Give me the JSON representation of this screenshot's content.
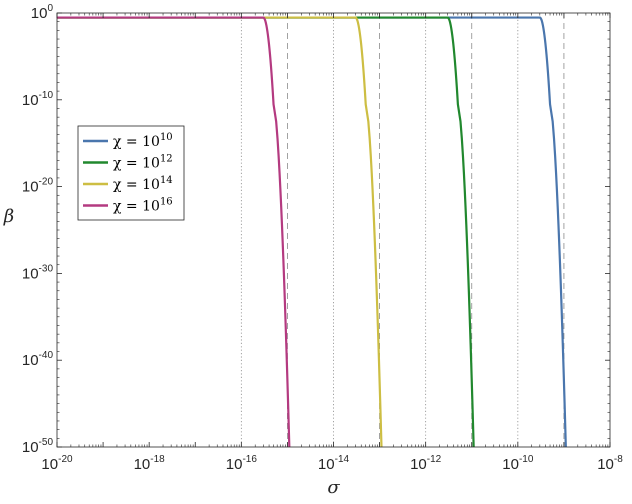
{
  "chart_data": {
    "type": "line",
    "x_scale": "log",
    "y_scale": "log",
    "xlim": [
      1e-20,
      1e-08
    ],
    "ylim": [
      1e-50,
      1
    ],
    "xlabel": "σ",
    "ylabel": "β",
    "x_tick_exponents": [
      -20,
      -18,
      -16,
      -14,
      -12,
      -10,
      -8
    ],
    "y_tick_exponents": [
      0,
      -10,
      -20,
      -30,
      -40,
      -50
    ],
    "grid": false,
    "legend_position": "upper-left",
    "series": [
      {
        "name": "χ = 10^10",
        "legend_prefix": "χ = 10",
        "legend_exp": "10",
        "color": "#4a76ad",
        "plateau_y": 0.3,
        "knee_x": 3e-10,
        "drop_start_x": 5e-10,
        "end_x": 1.1e-09,
        "dotted_x": 1e-10,
        "dashed_x": 1e-09
      },
      {
        "name": "χ = 10^12",
        "legend_prefix": "χ = 10",
        "legend_exp": "12",
        "color": "#21882e",
        "plateau_y": 0.3,
        "knee_x": 3e-12,
        "drop_start_x": 5e-12,
        "end_x": 1.1e-11,
        "dotted_x": 1e-12,
        "dashed_x": 1e-11
      },
      {
        "name": "χ = 10^14",
        "legend_prefix": "χ = 10",
        "legend_exp": "14",
        "color": "#cdbe43",
        "plateau_y": 0.3,
        "knee_x": 3e-14,
        "drop_start_x": 5e-14,
        "end_x": 1.1e-13,
        "dotted_x": 1e-14,
        "dashed_x": 1e-13
      },
      {
        "name": "χ = 10^16",
        "legend_prefix": "χ = 10",
        "legend_exp": "16",
        "color": "#b43a80",
        "plateau_y": 0.3,
        "knee_x": 3e-16,
        "drop_start_x": 5e-16,
        "end_x": 1.1e-15,
        "dotted_x": 1e-16,
        "dashed_x": 1e-15
      }
    ],
    "reference_line_color": "#8c8c8c"
  }
}
